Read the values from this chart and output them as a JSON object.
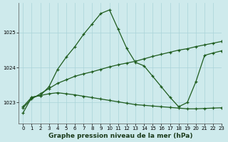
{
  "title": "Graphe pression niveau de la mer (hPa)",
  "background_color": "#ceeaec",
  "grid_color": "#aad4d8",
  "line_color": "#1e5c1e",
  "xlim": [
    -0.5,
    23
  ],
  "ylim": [
    1022.4,
    1025.85
  ],
  "yticks": [
    1023,
    1024,
    1025
  ],
  "xticks": [
    0,
    1,
    2,
    3,
    4,
    5,
    6,
    7,
    8,
    9,
    10,
    11,
    12,
    13,
    14,
    15,
    16,
    17,
    18,
    19,
    20,
    21,
    22,
    23
  ],
  "s1_x": [
    0,
    1,
    2,
    3,
    4,
    5,
    6,
    7,
    8,
    9,
    10,
    11,
    12,
    13,
    14,
    15,
    16,
    17,
    18,
    19,
    20,
    21,
    22,
    23
  ],
  "s1_y": [
    1022.7,
    1023.15,
    1023.2,
    1023.45,
    1023.95,
    1024.3,
    1024.6,
    1024.95,
    1025.25,
    1025.55,
    1025.65,
    1025.1,
    1024.55,
    1024.15,
    1024.05,
    1023.75,
    1023.45,
    1023.15,
    1022.88,
    1023.0,
    1023.6,
    1024.35,
    1024.42,
    1024.48
  ],
  "s2_x": [
    0,
    1,
    2,
    3,
    4,
    5,
    6,
    7,
    8,
    9,
    10,
    11,
    12,
    13,
    14,
    15,
    16,
    17,
    18,
    19,
    20,
    21,
    22,
    23
  ],
  "s2_y": [
    1022.85,
    1023.1,
    1023.25,
    1023.4,
    1023.55,
    1023.65,
    1023.75,
    1023.82,
    1023.88,
    1023.95,
    1024.02,
    1024.08,
    1024.13,
    1024.18,
    1024.25,
    1024.32,
    1024.38,
    1024.44,
    1024.5,
    1024.54,
    1024.6,
    1024.65,
    1024.7,
    1024.75
  ],
  "s3_x": [
    0,
    1,
    2,
    3,
    4,
    5,
    6,
    7,
    8,
    9,
    10,
    11,
    12,
    13,
    14,
    15,
    16,
    17,
    18,
    19,
    20,
    21,
    22,
    23
  ],
  "s3_y": [
    1022.88,
    1023.15,
    1023.2,
    1023.25,
    1023.28,
    1023.25,
    1023.22,
    1023.18,
    1023.14,
    1023.1,
    1023.06,
    1023.02,
    1022.98,
    1022.94,
    1022.92,
    1022.9,
    1022.88,
    1022.86,
    1022.84,
    1022.82,
    1022.82,
    1022.83,
    1022.84,
    1022.85
  ],
  "title_fontsize": 6.5,
  "tick_fontsize": 5
}
